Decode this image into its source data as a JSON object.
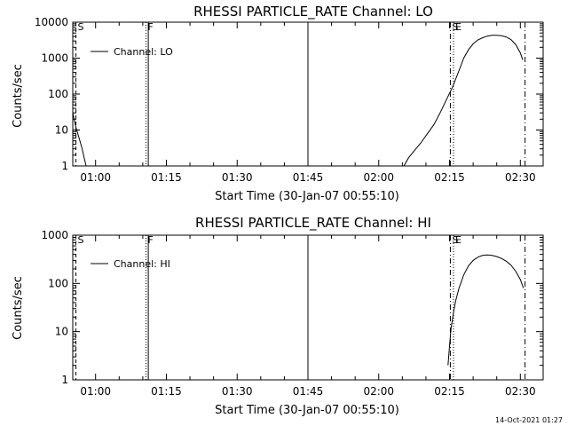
{
  "chart_data": [
    {
      "type": "line",
      "title": "RHESSI PARTICLE_RATE Channel: LO",
      "xlabel": "Start Time (30-Jan-07 00:55:10)",
      "ylabel": "Counts/sec",
      "y_scale": "log",
      "xlim": [
        "00:55:10",
        "02:34:50"
      ],
      "ylim": [
        1,
        10000
      ],
      "x_tick_labels": [
        "01:00",
        "01:15",
        "01:30",
        "01:45",
        "02:00",
        "02:15",
        "02:30"
      ],
      "x_tick_values": [
        "01:00",
        "01:15",
        "01:30",
        "01:45",
        "02:00",
        "02:15",
        "02:30"
      ],
      "y_tick_labels": [
        "1",
        "10",
        "100",
        "1000",
        "10000"
      ],
      "y_tick_values": [
        1,
        10,
        100,
        1000,
        10000
      ],
      "legend": {
        "position": "top-left",
        "entries": [
          "Channel: LO"
        ]
      },
      "grid": false,
      "series": [
        {
          "name": "Channel: LO",
          "points": [
            [
              "00:55:10",
              30
            ],
            [
              "00:55:50",
              12
            ],
            [
              "00:56:30",
              6
            ],
            [
              "00:57:10",
              3
            ],
            [
              "00:57:40",
              1.5
            ],
            [
              "00:58:00",
              1
            ],
            [
              "02:05:20",
              1
            ],
            [
              "02:06:20",
              1.7
            ],
            [
              "02:07:40",
              2.8
            ],
            [
              "02:09:00",
              4.5
            ],
            [
              "02:10:20",
              8
            ],
            [
              "02:11:40",
              14
            ],
            [
              "02:13:00",
              30
            ],
            [
              "02:14:20",
              70
            ],
            [
              "02:15:40",
              160
            ],
            [
              "02:17:00",
              450
            ],
            [
              "02:18:00",
              1000
            ],
            [
              "02:19:00",
              1700
            ],
            [
              "02:20:00",
              2500
            ],
            [
              "02:21:00",
              3200
            ],
            [
              "02:22:00",
              3700
            ],
            [
              "02:23:00",
              4100
            ],
            [
              "02:24:00",
              4300
            ],
            [
              "02:25:00",
              4300
            ],
            [
              "02:26:00",
              4200
            ],
            [
              "02:27:00",
              3900
            ],
            [
              "02:28:00",
              3300
            ],
            [
              "02:29:00",
              2400
            ],
            [
              "02:30:00",
              1400
            ],
            [
              "02:30:30",
              900
            ]
          ]
        }
      ],
      "vertical_lines": [
        {
          "x": "00:55:50",
          "style": "dashed",
          "label": "S"
        },
        {
          "x": "01:10:40",
          "style": "dotted",
          "label": "F"
        },
        {
          "x": "01:11:10",
          "style": "solid",
          "label": ""
        },
        {
          "x": "01:45:00",
          "style": "solid",
          "label": ""
        },
        {
          "x": "02:15:10",
          "style": "dashdot",
          "label": "S"
        },
        {
          "x": "02:15:50",
          "style": "dotted",
          "label": "E"
        },
        {
          "x": "02:31:00",
          "style": "dashdot",
          "label": ""
        }
      ]
    },
    {
      "type": "line",
      "title": "RHESSI PARTICLE_RATE Channel: HI",
      "xlabel": "Start Time (30-Jan-07 00:55:10)",
      "ylabel": "Counts/sec",
      "y_scale": "log",
      "xlim": [
        "00:55:10",
        "02:34:50"
      ],
      "ylim": [
        1,
        1000
      ],
      "x_tick_labels": [
        "01:00",
        "01:15",
        "01:30",
        "01:45",
        "02:00",
        "02:15",
        "02:30"
      ],
      "x_tick_values": [
        "01:00",
        "01:15",
        "01:30",
        "01:45",
        "02:00",
        "02:15",
        "02:30"
      ],
      "y_tick_labels": [
        "1",
        "10",
        "100",
        "1000"
      ],
      "y_tick_values": [
        1,
        10,
        100,
        1000
      ],
      "legend": {
        "position": "top-left",
        "entries": [
          "Channel: HI"
        ]
      },
      "grid": false,
      "series": [
        {
          "name": "Channel: HI",
          "points": [
            [
              "02:14:40",
              2
            ],
            [
              "02:15:00",
              5
            ],
            [
              "02:15:20",
              12
            ],
            [
              "02:15:50",
              25
            ],
            [
              "02:16:20",
              45
            ],
            [
              "02:17:00",
              80
            ],
            [
              "02:18:00",
              150
            ],
            [
              "02:19:00",
              230
            ],
            [
              "02:20:00",
              300
            ],
            [
              "02:21:00",
              350
            ],
            [
              "02:22:00",
              380
            ],
            [
              "02:23:00",
              390
            ],
            [
              "02:24:00",
              380
            ],
            [
              "02:25:00",
              360
            ],
            [
              "02:26:00",
              330
            ],
            [
              "02:27:00",
              290
            ],
            [
              "02:28:00",
              240
            ],
            [
              "02:29:00",
              180
            ],
            [
              "02:30:00",
              120
            ],
            [
              "02:30:40",
              80
            ]
          ]
        }
      ],
      "vertical_lines": [
        {
          "x": "00:55:50",
          "style": "dashed",
          "label": "S"
        },
        {
          "x": "01:10:40",
          "style": "dotted",
          "label": "F"
        },
        {
          "x": "01:11:10",
          "style": "solid",
          "label": ""
        },
        {
          "x": "01:45:00",
          "style": "solid",
          "label": ""
        },
        {
          "x": "02:15:10",
          "style": "dashdot",
          "label": "S"
        },
        {
          "x": "02:15:50",
          "style": "dotted",
          "label": "E"
        },
        {
          "x": "02:31:00",
          "style": "dashdot",
          "label": ""
        }
      ]
    }
  ],
  "timestamp": "14-Oct-2021 01:27",
  "colors": {
    "foreground": "#000000",
    "background": "#ffffff"
  }
}
